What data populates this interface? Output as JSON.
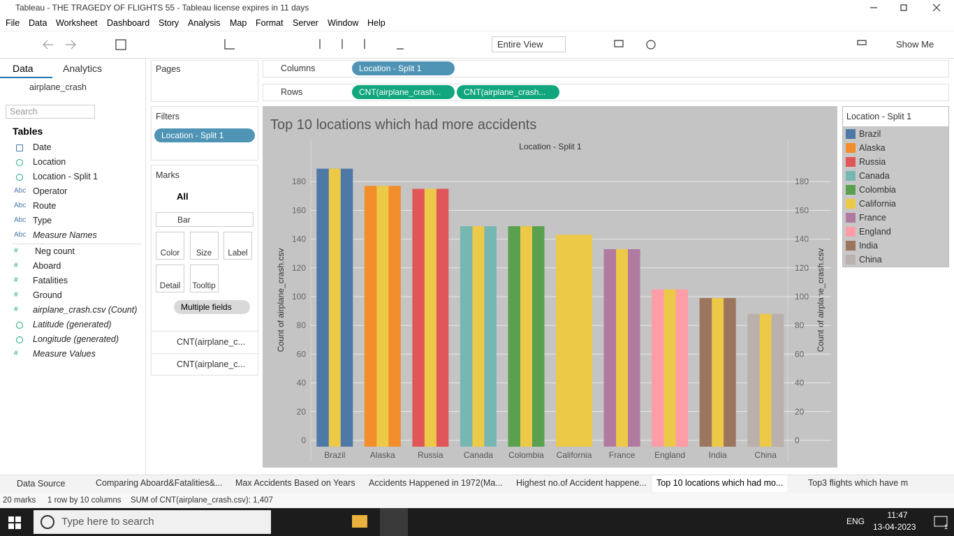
{
  "window_title": "Tableau - THE TRAGEDY OF FLIGHTS 55 - Tableau license expires in 11 days",
  "menu": [
    "File",
    "Data",
    "Worksheet",
    "Dashboard",
    "Story",
    "Analysis",
    "Map",
    "Format",
    "Server",
    "Window",
    "Help"
  ],
  "toolbar": {
    "fit": "Entire View",
    "show_me": "Show Me"
  },
  "data_pane": {
    "tabs": [
      "Data",
      "Analytics"
    ],
    "source": "airplane_crash",
    "search": "Search",
    "tables_heading": "Tables",
    "fields": [
      {
        "name": "Date"
      },
      {
        "name": "Location"
      },
      {
        "name": "Location - Split 1"
      },
      {
        "icon": "Abc",
        "name": "Operator"
      },
      {
        "icon": "Abc",
        "name": "Route"
      },
      {
        "icon": "Abc",
        "name": "Type"
      },
      {
        "icon": "Abc",
        "name": "Measure Names",
        "italic": true
      },
      {
        "icon": "#",
        "name": "Neg count"
      },
      {
        "icon": "#",
        "name": "Aboard"
      },
      {
        "icon": "#",
        "name": "Fatalities"
      },
      {
        "icon": "#",
        "name": "Ground"
      },
      {
        "icon": "#",
        "name": "airplane_crash.csv (Count)",
        "italic": true
      },
      {
        "name": "Latitude (generated)",
        "italic": true
      },
      {
        "name": "Longitude (generated)",
        "italic": true
      },
      {
        "icon": "#",
        "name": "Measure Values",
        "italic": true
      }
    ]
  },
  "pages": "Pages",
  "filters": {
    "title": "Filters",
    "pill": "Location - Split 1"
  },
  "marks": {
    "title": "Marks",
    "all": "All",
    "mark_type": "Bar",
    "buttons": [
      "Color",
      "Size",
      "Label",
      "Detail",
      "Tooltip"
    ],
    "color_pill": "Multiple fields",
    "measures": [
      "CNT(airplane_c...",
      "CNT(airplane_c..."
    ]
  },
  "shelves": {
    "columns": {
      "label": "Columns",
      "pills": [
        "Location - Split 1"
      ]
    },
    "rows": {
      "label": "Rows",
      "pills": [
        "CNT(airplane_crash...",
        "CNT(airplane_crash..."
      ]
    }
  },
  "chart_data": {
    "type": "bar",
    "title": "Top 10 locations which had more accidents",
    "x_label": "Location - Split 1",
    "y_label": "Count of airplane_crash.csv",
    "y2_label": "Count of airplane_crash.csv",
    "categories": [
      "Brazil",
      "Alaska",
      "Russia",
      "Canada",
      "Colombia",
      "California",
      "France",
      "England",
      "India",
      "China"
    ],
    "series": [
      {
        "colors": [
          "#4e79a7",
          "#f28e2b",
          "#e15759",
          "#76b7b2",
          "#59a14f",
          "#edc948",
          "#b07aa1",
          "#ff9da7",
          "#9c755f",
          "#bab0ac"
        ],
        "values": [
          189,
          177,
          175,
          149,
          149,
          143,
          133,
          105,
          99,
          88
        ]
      },
      {
        "color": "#edc948",
        "axis": "y2",
        "values": [
          189,
          177,
          175,
          149,
          149,
          143,
          133,
          105,
          99,
          88
        ]
      }
    ],
    "ylim": [
      0,
      200
    ],
    "yticks": [
      0,
      20,
      40,
      60,
      80,
      100,
      120,
      140,
      160,
      180
    ],
    "y2lim": [
      0,
      200
    ],
    "y2ticks": [
      0,
      20,
      40,
      60,
      80,
      100,
      120,
      140,
      160,
      180
    ],
    "grid": true
  },
  "legend": {
    "title": "Location - Split 1"
  },
  "sheet_tabs": {
    "data_source": "Data Source",
    "tabs": [
      "Comparing Aboard&Fatalities&...",
      "Max Accidents Based on Years",
      "Accidents Happened in 1972(Ma...",
      "Highest no.of Accident happene...",
      "Top 10 locations which had mo...",
      "Top3 flights which have m"
    ],
    "active": 4
  },
  "status": [
    "20 marks",
    "1 row by 10 columns",
    "SUM of CNT(airplane_crash.csv): 1,407"
  ],
  "taskbar": {
    "search": "Type here to search",
    "lang": "ENG",
    "time": "11:47",
    "date": "13-04-2023",
    "notifications": "1"
  }
}
